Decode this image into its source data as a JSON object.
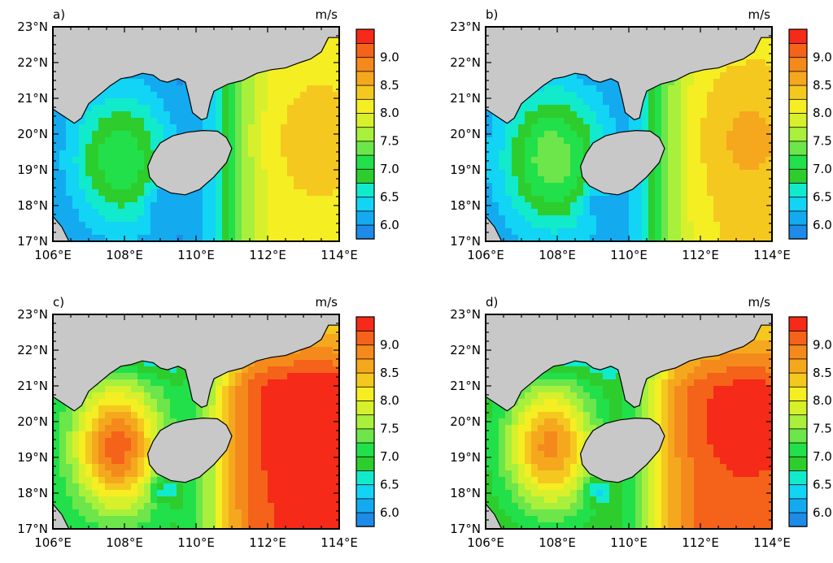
{
  "figure": {
    "panels": [
      {
        "label": "a)",
        "unit": "m/s",
        "intensity": 0.0
      },
      {
        "label": "b)",
        "unit": "m/s",
        "intensity": 0.12
      },
      {
        "label": "c)",
        "unit": "m/s",
        "intensity": 1.0
      },
      {
        "label": "d)",
        "unit": "m/s",
        "intensity": 0.85
      }
    ],
    "lat_ticks": [
      "23°N",
      "22°N",
      "21°N",
      "20°N",
      "19°N",
      "18°N",
      "17°N"
    ],
    "lon_ticks": [
      "106°E",
      "108°E",
      "110°E",
      "112°E",
      "114°E"
    ],
    "colorbar": {
      "labels": [
        "9.0",
        "8.5",
        "8.0",
        "7.5",
        "7.0",
        "6.5",
        "6.0"
      ],
      "levels": [
        5.75,
        6.0,
        6.25,
        6.5,
        6.75,
        7.0,
        7.25,
        7.5,
        7.75,
        8.0,
        8.25,
        8.5,
        8.75,
        9.0,
        9.25
      ],
      "colors": [
        "#1e8be8",
        "#14aaf0",
        "#12d4f5",
        "#12eacc",
        "#2ecd2e",
        "#22e04a",
        "#6ce64a",
        "#a8f03c",
        "#d8f02c",
        "#f5ee22",
        "#f5c820",
        "#f5a81e",
        "#f58a1c",
        "#f5621a",
        "#f52a18"
      ]
    },
    "land_color": "#c8c8c8",
    "coast_color": "#000000",
    "lon_range": [
      106,
      114
    ],
    "lat_range": [
      17,
      23
    ]
  }
}
